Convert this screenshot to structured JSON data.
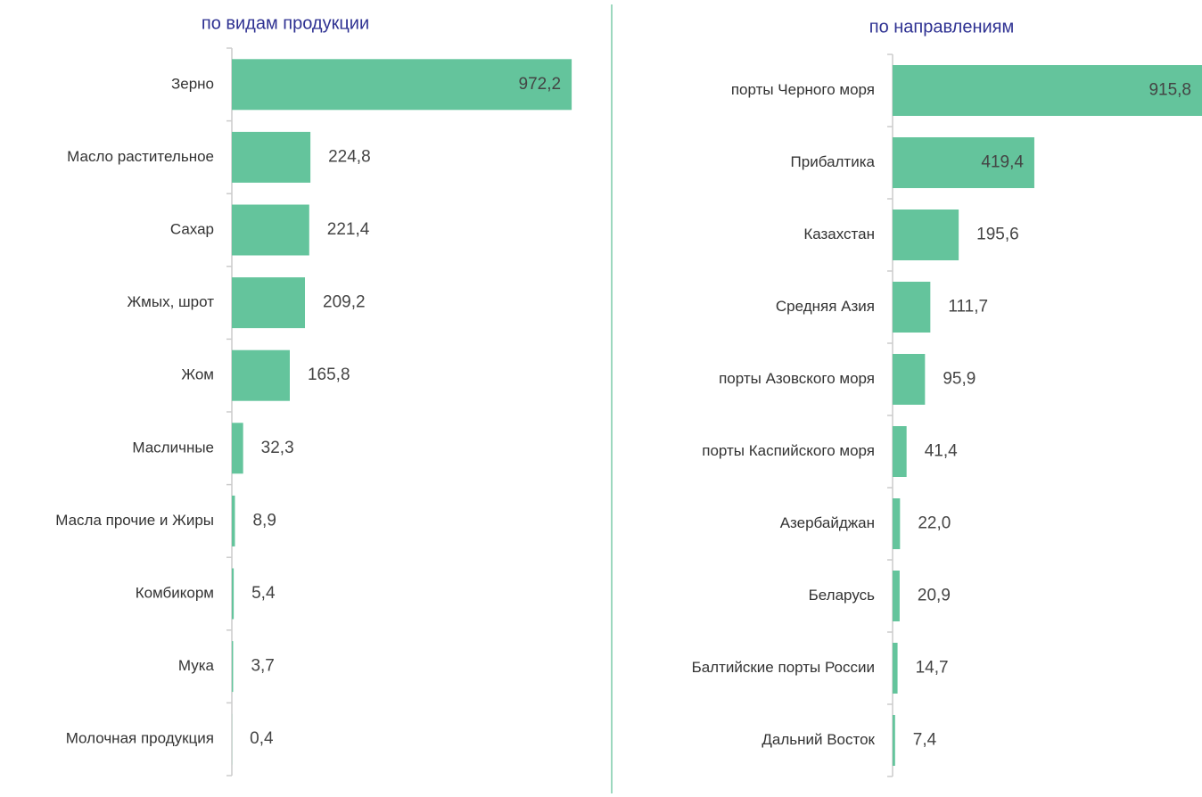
{
  "chart_data": [
    {
      "type": "bar",
      "orientation": "horizontal",
      "title": "по видам продукции",
      "categories": [
        "Зерно",
        "Масло растительное",
        "Сахар",
        "Жмых, шрот",
        "Жом",
        "Масличные",
        "Масла прочие и Жиры",
        "Комбикорм",
        "Мука",
        "Молочная продукция"
      ],
      "values": [
        972.2,
        224.8,
        221.4,
        209.2,
        165.8,
        32.3,
        8.9,
        5.4,
        3.7,
        0.4
      ],
      "value_labels": [
        "972,2",
        "224,8",
        "221,4",
        "209,2",
        "165,8",
        "32,3",
        "8,9",
        "5,4",
        "3,7",
        "0,4"
      ],
      "color": "#64c49c",
      "xlim": [
        0,
        1000
      ]
    },
    {
      "type": "bar",
      "orientation": "horizontal",
      "title": "по направлениям",
      "categories": [
        "порты Черного моря",
        "Прибалтика",
        "Казахстан",
        "Средняя Азия",
        "порты Азовского моря",
        "порты Каспийского моря",
        "Азербайджан",
        "Беларусь",
        "Балтийские порты России",
        "Дальний Восток"
      ],
      "values": [
        915.8,
        419.4,
        195.6,
        111.7,
        95.9,
        41.4,
        22.0,
        20.9,
        14.7,
        7.4
      ],
      "value_labels": [
        "915,8",
        "419,4",
        "195,6",
        "111,7",
        "95,9",
        "41,4",
        "22,0",
        "20,9",
        "14,7",
        "7,4"
      ],
      "color": "#64c49c",
      "xlim": [
        0,
        1000
      ]
    }
  ]
}
